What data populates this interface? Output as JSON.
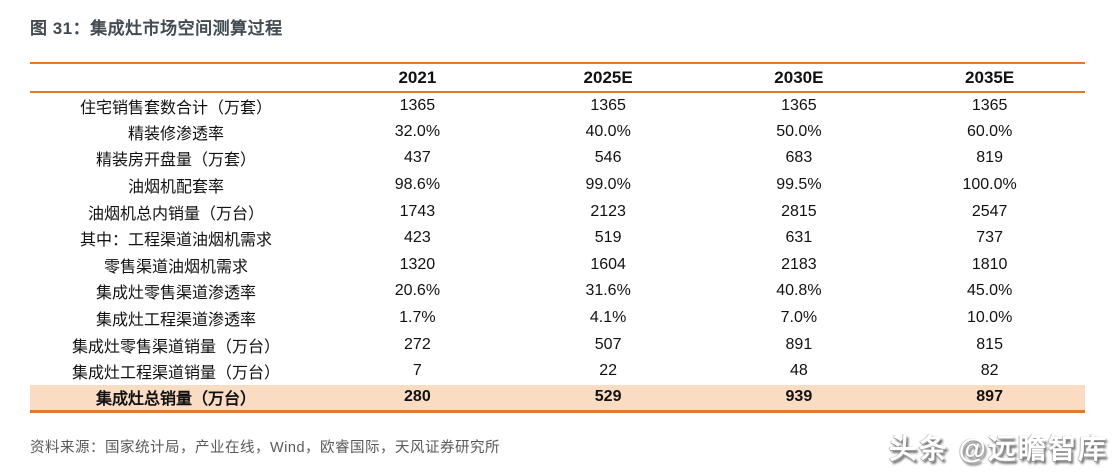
{
  "figure": {
    "title": "图 31：集成灶市场空间测算过程",
    "source": "资料来源：国家统计局，产业在线，Wind，欧睿国际，天风证券研究所",
    "watermark": "头条 @远瞻智库"
  },
  "colors": {
    "accent_orange": "#E5792A",
    "highlight_row_bg": "#FADCC2",
    "title_color": "#414A52",
    "source_text_color": "#595959",
    "body_text_color": "#111111"
  },
  "chart_data": {
    "type": "table",
    "title": "集成灶市场空间测算过程",
    "columns": [
      "",
      "2021",
      "2025E",
      "2030E",
      "2035E"
    ],
    "rows": [
      {
        "label": "住宅销售套数合计（万套）",
        "indent": 0,
        "highlight": false,
        "values": [
          "1365",
          "1365",
          "1365",
          "1365"
        ]
      },
      {
        "label": "精装修渗透率",
        "indent": 0,
        "highlight": false,
        "values": [
          "32.0%",
          "40.0%",
          "50.0%",
          "60.0%"
        ]
      },
      {
        "label": "精装房开盘量（万套）",
        "indent": 0,
        "highlight": false,
        "values": [
          "437",
          "546",
          "683",
          "819"
        ]
      },
      {
        "label": "油烟机配套率",
        "indent": 0,
        "highlight": false,
        "values": [
          "98.6%",
          "99.0%",
          "99.5%",
          "100.0%"
        ]
      },
      {
        "label": "油烟机总内销量（万台）",
        "indent": 0,
        "highlight": false,
        "values": [
          "1743",
          "2123",
          "2815",
          "2547"
        ]
      },
      {
        "label": "其中：工程渠道油烟机需求",
        "indent": 1,
        "highlight": false,
        "values": [
          "423",
          "519",
          "631",
          "737"
        ]
      },
      {
        "label": "零售渠道油烟机需求",
        "indent": 2,
        "highlight": false,
        "values": [
          "1320",
          "1604",
          "2183",
          "1810"
        ]
      },
      {
        "label": "集成灶零售渠道渗透率",
        "indent": 0,
        "highlight": false,
        "values": [
          "20.6%",
          "31.6%",
          "40.8%",
          "45.0%"
        ]
      },
      {
        "label": "集成灶工程渠道渗透率",
        "indent": 1,
        "highlight": false,
        "values": [
          "1.7%",
          "4.1%",
          "7.0%",
          "10.0%"
        ]
      },
      {
        "label": "集成灶零售渠道销量（万台）",
        "indent": 0,
        "highlight": false,
        "values": [
          "272",
          "507",
          "891",
          "815"
        ]
      },
      {
        "label": "集成灶工程渠道销量（万台）",
        "indent": 0,
        "highlight": false,
        "values": [
          "7",
          "22",
          "48",
          "82"
        ]
      },
      {
        "label": "集成灶总销量（万台）",
        "indent": 0,
        "highlight": true,
        "values": [
          "280",
          "529",
          "939",
          "897"
        ]
      }
    ]
  }
}
